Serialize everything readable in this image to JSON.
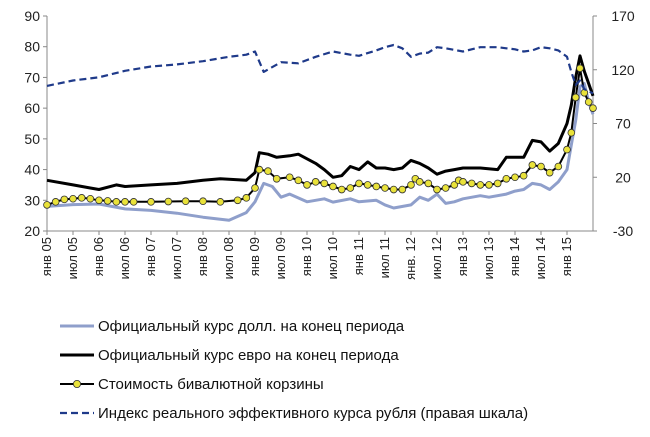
{
  "chart_data": {
    "type": "line",
    "x_tick_labels": [
      "янв 05",
      "июл 05",
      "янв 06",
      "июл 06",
      "янв 07",
      "июл 07",
      "янв 08",
      "июл 08",
      "янв 09",
      "июл 09",
      "янв 10",
      "июл 10",
      "янв 11",
      "июл 11",
      "янв. 12",
      "июл 12",
      "янв 13",
      "июл 13",
      "янв 14",
      "июл 14",
      "янв 15"
    ],
    "x_unit": "months from янв 05",
    "left_axis": {
      "ylim": [
        20,
        90
      ],
      "ticks": [
        20,
        30,
        40,
        50,
        60,
        70,
        80,
        90
      ]
    },
    "right_axis": {
      "ylim": [
        -30,
        170
      ],
      "ticks": [
        -30,
        20,
        70,
        120,
        170
      ]
    },
    "grid": false,
    "legend_position": "bottom",
    "series": [
      {
        "name": "Официальный курс долл. на конец периода",
        "axis": "left",
        "color": "#8F9FCB",
        "style": "solid",
        "points": [
          [
            0,
            28
          ],
          [
            6,
            28.6
          ],
          [
            12,
            28.8
          ],
          [
            18,
            27.2
          ],
          [
            24,
            26.7
          ],
          [
            30,
            25.8
          ],
          [
            36,
            24.5
          ],
          [
            42,
            23.5
          ],
          [
            46,
            26
          ],
          [
            48,
            29.5
          ],
          [
            50,
            35.5
          ],
          [
            52,
            34.5
          ],
          [
            54,
            31
          ],
          [
            56,
            32
          ],
          [
            60,
            29.5
          ],
          [
            64,
            30.5
          ],
          [
            66,
            29.4
          ],
          [
            70,
            30.5
          ],
          [
            72,
            29.5
          ],
          [
            76,
            30
          ],
          [
            78,
            28.5
          ],
          [
            80,
            27.5
          ],
          [
            84,
            28.5
          ],
          [
            86,
            31
          ],
          [
            88,
            30
          ],
          [
            90,
            32
          ],
          [
            92,
            29
          ],
          [
            94,
            29.5
          ],
          [
            96,
            30.5
          ],
          [
            100,
            31.5
          ],
          [
            102,
            31
          ],
          [
            106,
            32
          ],
          [
            108,
            33
          ],
          [
            110,
            33.5
          ],
          [
            112,
            35.5
          ],
          [
            114,
            35
          ],
          [
            116,
            33.5
          ],
          [
            118,
            36
          ],
          [
            120,
            40
          ],
          [
            121,
            48
          ],
          [
            122,
            56
          ],
          [
            123,
            67
          ],
          [
            124,
            68
          ],
          [
            125,
            62
          ],
          [
            126,
            58
          ]
        ]
      },
      {
        "name": "Официальный курс евро на конец периода",
        "axis": "left",
        "color": "#000000",
        "style": "solid",
        "points": [
          [
            0,
            36.5
          ],
          [
            6,
            35
          ],
          [
            10,
            34
          ],
          [
            12,
            33.5
          ],
          [
            16,
            35
          ],
          [
            18,
            34.5
          ],
          [
            24,
            35
          ],
          [
            30,
            35.5
          ],
          [
            36,
            36.5
          ],
          [
            40,
            37
          ],
          [
            46,
            36.5
          ],
          [
            48,
            39
          ],
          [
            49,
            45.5
          ],
          [
            51,
            45
          ],
          [
            53,
            44
          ],
          [
            56,
            44.5
          ],
          [
            58,
            45
          ],
          [
            62,
            42
          ],
          [
            64,
            40
          ],
          [
            66,
            37.5
          ],
          [
            68,
            38
          ],
          [
            70,
            41
          ],
          [
            72,
            40
          ],
          [
            74,
            42.5
          ],
          [
            76,
            40.5
          ],
          [
            78,
            40.5
          ],
          [
            80,
            40
          ],
          [
            82,
            40.5
          ],
          [
            84,
            43
          ],
          [
            86,
            42
          ],
          [
            88,
            40.5
          ],
          [
            90,
            38.5
          ],
          [
            92,
            39.5
          ],
          [
            94,
            40
          ],
          [
            96,
            40.5
          ],
          [
            100,
            40.5
          ],
          [
            104,
            40
          ],
          [
            106,
            44
          ],
          [
            110,
            44
          ],
          [
            112,
            49.5
          ],
          [
            114,
            49
          ],
          [
            116,
            46
          ],
          [
            118,
            48.5
          ],
          [
            120,
            55
          ],
          [
            121,
            61
          ],
          [
            122,
            70
          ],
          [
            123,
            77
          ],
          [
            124,
            72
          ],
          [
            125,
            68
          ],
          [
            126,
            64
          ]
        ]
      },
      {
        "name": "Стоимость бивалютной корзины",
        "axis": "left",
        "color": "#000000",
        "marker_fill": "#E9E23A",
        "style": "solid-with-markers",
        "points": [
          [
            0,
            28.5
          ],
          [
            2,
            29.5
          ],
          [
            4,
            30.3
          ],
          [
            6,
            30.5
          ],
          [
            8,
            30.8
          ],
          [
            10,
            30.5
          ],
          [
            12,
            30
          ],
          [
            14,
            29.8
          ],
          [
            16,
            29.5
          ],
          [
            18,
            29.5
          ],
          [
            20,
            29.5
          ],
          [
            24,
            29.5
          ],
          [
            28,
            29.6
          ],
          [
            32,
            29.7
          ],
          [
            36,
            29.7
          ],
          [
            40,
            29.5
          ],
          [
            44,
            30
          ],
          [
            46,
            30.8
          ],
          [
            48,
            34
          ],
          [
            49,
            40
          ],
          [
            51,
            39.5
          ],
          [
            53,
            37
          ],
          [
            56,
            37.5
          ],
          [
            58,
            36.5
          ],
          [
            60,
            35
          ],
          [
            62,
            36
          ],
          [
            64,
            35.5
          ],
          [
            66,
            34.5
          ],
          [
            68,
            33.5
          ],
          [
            70,
            34
          ],
          [
            72,
            35.5
          ],
          [
            74,
            35
          ],
          [
            76,
            34.5
          ],
          [
            78,
            34
          ],
          [
            80,
            33.5
          ],
          [
            82,
            33.5
          ],
          [
            84,
            35
          ],
          [
            85,
            37
          ],
          [
            86,
            36
          ],
          [
            88,
            35.5
          ],
          [
            90,
            33.5
          ],
          [
            92,
            34
          ],
          [
            94,
            35
          ],
          [
            95,
            36.5
          ],
          [
            96,
            36
          ],
          [
            98,
            35.5
          ],
          [
            100,
            35
          ],
          [
            102,
            35
          ],
          [
            104,
            35.5
          ],
          [
            106,
            37
          ],
          [
            108,
            37.5
          ],
          [
            110,
            38
          ],
          [
            112,
            41.5
          ],
          [
            114,
            41
          ],
          [
            116,
            39
          ],
          [
            118,
            41
          ],
          [
            120,
            46.5
          ],
          [
            121,
            52
          ],
          [
            122,
            63.5
          ],
          [
            123,
            73
          ],
          [
            124,
            65
          ],
          [
            125,
            62
          ],
          [
            126,
            60
          ]
        ]
      },
      {
        "name": "Индекс реального эффективного курса рубля (правая шкала)",
        "axis": "right",
        "color": "#1F3A8A",
        "style": "dashed",
        "points": [
          [
            0,
            105
          ],
          [
            6,
            110
          ],
          [
            12,
            113
          ],
          [
            18,
            119
          ],
          [
            24,
            123
          ],
          [
            30,
            125
          ],
          [
            36,
            128
          ],
          [
            42,
            132
          ],
          [
            46,
            134
          ],
          [
            48,
            137
          ],
          [
            50,
            118
          ],
          [
            54,
            127
          ],
          [
            58,
            126
          ],
          [
            62,
            132
          ],
          [
            66,
            137
          ],
          [
            70,
            134
          ],
          [
            72,
            133
          ],
          [
            76,
            138
          ],
          [
            78,
            141
          ],
          [
            80,
            143
          ],
          [
            82,
            140
          ],
          [
            84,
            132
          ],
          [
            86,
            135
          ],
          [
            88,
            136
          ],
          [
            90,
            141
          ],
          [
            92,
            140
          ],
          [
            96,
            137
          ],
          [
            98,
            139
          ],
          [
            100,
            141
          ],
          [
            104,
            141
          ],
          [
            106,
            140
          ],
          [
            108,
            139
          ],
          [
            110,
            137
          ],
          [
            112,
            138
          ],
          [
            114,
            141
          ],
          [
            116,
            140
          ],
          [
            118,
            138
          ],
          [
            120,
            132
          ],
          [
            121,
            118
          ],
          [
            122,
            106
          ],
          [
            123,
            110
          ],
          [
            124,
            102
          ],
          [
            125,
            100
          ],
          [
            126,
            98
          ]
        ]
      }
    ]
  }
}
